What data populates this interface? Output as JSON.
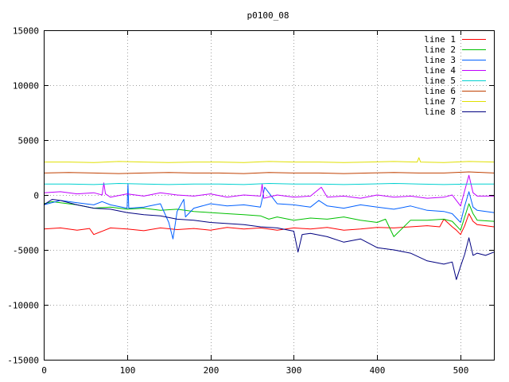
{
  "chart_data": {
    "type": "line",
    "title": "p0100_08",
    "xlabel": "",
    "ylabel": "",
    "xlim": [
      0,
      540
    ],
    "ylim": [
      -15000,
      15000
    ],
    "x_ticks": [
      "0",
      "100",
      "200",
      "300",
      "400",
      "500"
    ],
    "y_ticks": [
      "15000",
      "10000",
      "5000",
      "0",
      "-5000",
      "-10000",
      "-15000"
    ],
    "grid": true,
    "legend_position": "top-right",
    "series": [
      {
        "name": "line 1",
        "color": "#ff0000",
        "x": [
          0,
          20,
          40,
          55,
          60,
          80,
          100,
          120,
          140,
          160,
          180,
          200,
          220,
          240,
          260,
          280,
          300,
          320,
          340,
          360,
          380,
          400,
          420,
          440,
          460,
          475,
          480,
          490,
          495,
          500,
          505,
          510,
          515,
          520,
          530,
          540
        ],
        "y": [
          -3100,
          -3000,
          -3200,
          -3050,
          -3600,
          -3000,
          -3100,
          -3250,
          -3000,
          -3150,
          -3050,
          -3200,
          -2950,
          -3100,
          -3000,
          -3200,
          -3000,
          -3100,
          -2950,
          -3200,
          -3100,
          -2950,
          -3000,
          -2900,
          -2800,
          -2900,
          -2200,
          -2900,
          -3200,
          -3600,
          -2800,
          -1700,
          -2400,
          -2700,
          -2800,
          -2900
        ]
      },
      {
        "name": "line 2",
        "color": "#00c000",
        "x": [
          0,
          10,
          20,
          40,
          60,
          80,
          100,
          120,
          140,
          160,
          180,
          200,
          220,
          240,
          260,
          270,
          280,
          300,
          320,
          340,
          360,
          380,
          400,
          410,
          420,
          440,
          460,
          480,
          490,
          500,
          505,
          510,
          515,
          520,
          540
        ],
        "y": [
          -800,
          -600,
          -700,
          -900,
          -1200,
          -1100,
          -1300,
          -1200,
          -1400,
          -1300,
          -1500,
          -1600,
          -1700,
          -1800,
          -1900,
          -2200,
          -2000,
          -2300,
          -2100,
          -2200,
          -2000,
          -2300,
          -2500,
          -2200,
          -3800,
          -2300,
          -2300,
          -2200,
          -2400,
          -3200,
          -2000,
          -800,
          -1700,
          -2300,
          -2400
        ]
      },
      {
        "name": "line 3",
        "color": "#0060ff",
        "x": [
          0,
          20,
          40,
          60,
          70,
          80,
          100,
          101,
          102,
          120,
          140,
          150,
          155,
          160,
          168,
          170,
          180,
          200,
          220,
          240,
          260,
          265,
          280,
          300,
          320,
          330,
          340,
          360,
          380,
          400,
          420,
          440,
          460,
          480,
          490,
          500,
          505,
          510,
          515,
          520,
          540
        ],
        "y": [
          -900,
          -500,
          -700,
          -900,
          -600,
          -900,
          -1200,
          1000,
          -1200,
          -1100,
          -800,
          -2500,
          -4000,
          -1500,
          -400,
          -2000,
          -1200,
          -800,
          -1000,
          -900,
          -1100,
          700,
          -800,
          -900,
          -1100,
          -500,
          -1000,
          -1200,
          -900,
          -1100,
          -1300,
          -1000,
          -1400,
          -1500,
          -1700,
          -2500,
          -1000,
          300,
          -1100,
          -1400,
          -1600
        ]
      },
      {
        "name": "line 4",
        "color": "#c000ff",
        "x": [
          0,
          20,
          40,
          60,
          70,
          72,
          74,
          80,
          100,
          120,
          140,
          160,
          180,
          200,
          220,
          240,
          260,
          262,
          264,
          280,
          300,
          320,
          333,
          340,
          360,
          380,
          400,
          420,
          440,
          460,
          480,
          490,
          500,
          505,
          510,
          515,
          520,
          540
        ],
        "y": [
          200,
          300,
          100,
          200,
          0,
          1100,
          100,
          -200,
          100,
          -100,
          200,
          0,
          -100,
          100,
          -200,
          0,
          -100,
          1000,
          -300,
          0,
          -200,
          -100,
          700,
          -200,
          -100,
          -300,
          0,
          -200,
          -100,
          -300,
          -200,
          0,
          -1000,
          400,
          1800,
          200,
          -100,
          -100
        ]
      },
      {
        "name": "line 5",
        "color": "#00d0d0",
        "x": [
          0,
          30,
          60,
          90,
          120,
          150,
          180,
          210,
          240,
          270,
          300,
          330,
          360,
          390,
          420,
          450,
          480,
          510,
          540
        ],
        "y": [
          1000,
          1000,
          950,
          1050,
          1000,
          950,
          1000,
          1000,
          950,
          1050,
          1000,
          1000,
          950,
          1000,
          1050,
          1000,
          950,
          1000,
          1000
        ]
      },
      {
        "name": "line 6",
        "color": "#c04000",
        "x": [
          0,
          30,
          60,
          90,
          120,
          150,
          180,
          210,
          240,
          270,
          300,
          330,
          360,
          390,
          420,
          450,
          480,
          510,
          540
        ],
        "y": [
          2000,
          2050,
          2000,
          1950,
          2000,
          2050,
          2000,
          2000,
          1950,
          2050,
          2000,
          2000,
          1950,
          2000,
          2050,
          2000,
          2000,
          2100,
          2000
        ]
      },
      {
        "name": "line 7",
        "color": "#e0e000",
        "x": [
          0,
          30,
          60,
          90,
          120,
          150,
          180,
          210,
          240,
          270,
          300,
          330,
          360,
          390,
          420,
          448,
          450,
          452,
          480,
          510,
          540
        ],
        "y": [
          3000,
          3000,
          2950,
          3050,
          3000,
          2950,
          3000,
          3000,
          2950,
          3050,
          3000,
          3000,
          2950,
          3000,
          3050,
          3000,
          3400,
          3000,
          2950,
          3050,
          3000
        ]
      },
      {
        "name": "line 8",
        "color": "#000080",
        "x": [
          0,
          10,
          20,
          40,
          60,
          80,
          100,
          120,
          140,
          160,
          180,
          200,
          220,
          240,
          260,
          280,
          300,
          305,
          310,
          320,
          340,
          360,
          380,
          400,
          420,
          440,
          460,
          480,
          490,
          495,
          500,
          505,
          510,
          515,
          520,
          530,
          540
        ],
        "y": [
          -900,
          -400,
          -500,
          -900,
          -1200,
          -1300,
          -1600,
          -1800,
          -1900,
          -2200,
          -2300,
          -2500,
          -2600,
          -2700,
          -2900,
          -3000,
          -3300,
          -5200,
          -3600,
          -3500,
          -3800,
          -4300,
          -4000,
          -4800,
          -5000,
          -5300,
          -6000,
          -6300,
          -6100,
          -7700,
          -6500,
          -5400,
          -3900,
          -5500,
          -5300,
          -5500,
          -5200
        ]
      }
    ]
  }
}
